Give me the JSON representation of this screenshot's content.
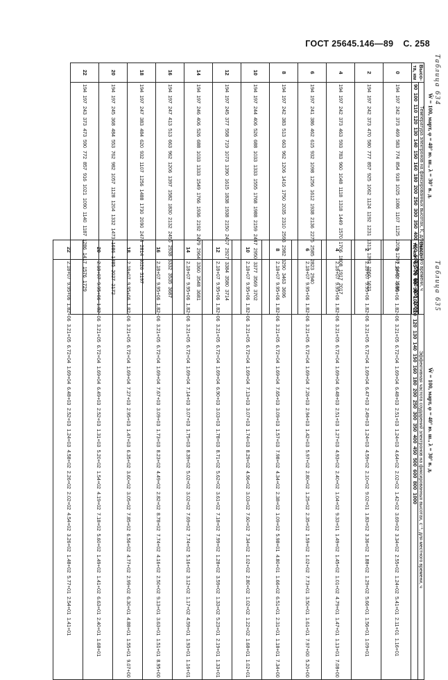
{
  "header": {
    "gost": "ГОСТ 25645.146—89",
    "page": "С. 258"
  },
  "table1": {
    "caption": "Таблица 634",
    "title": "W̄ = 100, март, φ = 40° ю. ш., λ = 30° в. д.",
    "subtitle": "Температура электронов на фиксированных высотах, К, для местного времени, ч",
    "height_label": "Высо-\nта, км",
    "columns": [
      "0",
      "2",
      "4",
      "6",
      "8",
      "10",
      "12",
      "14",
      "16",
      "18",
      "20",
      "22"
    ],
    "heights": [
      "90",
      "100",
      "110",
      "120",
      "130",
      "140",
      "150",
      "160",
      "180",
      "200",
      "250",
      "300",
      "350",
      "400",
      "450",
      "500",
      "550",
      "600",
      "800",
      "1000"
    ],
    "cols": [
      [
        "194",
        "197",
        "242",
        "373",
        "469",
        "583",
        "774",
        "854",
        "918",
        "1025",
        "1086",
        "1107",
        "1125",
        "1205",
        "1297",
        "1440",
        "1580",
        "",
        ""
      ],
      [
        "194",
        "197",
        "242",
        "373",
        "470",
        "580",
        "777",
        "857",
        "925",
        "1062",
        "1124",
        "1192",
        "1231",
        "1313",
        "1392",
        "1560",
        "1621"
      ],
      [
        "194",
        "197",
        "242",
        "373",
        "463",
        "593",
        "783",
        "960",
        "1048",
        "1118",
        "1318",
        "1449",
        "1570",
        "1706",
        "1808",
        "1917",
        "2017"
      ],
      [
        "194",
        "197",
        "241",
        "386",
        "462",
        "615",
        "932",
        "1098",
        "1256",
        "1612",
        "1938",
        "2136",
        "2275",
        "2585",
        "2823",
        "2940"
      ],
      [
        "194",
        "197",
        "242",
        "383",
        "513",
        "663",
        "962",
        "1206",
        "1416",
        "1750",
        "2035",
        "2310",
        "2593",
        "2982",
        "3290",
        "3463",
        "3696"
      ],
      [
        "194",
        "197",
        "244",
        "406",
        "526",
        "688",
        "1033",
        "1333",
        "1555",
        "1768",
        "1988",
        "2159",
        "2447",
        "2950",
        "3377",
        "3569",
        "3702"
      ],
      [
        "194",
        "197",
        "245",
        "377",
        "558",
        "719",
        "1073",
        "1390",
        "1615",
        "1838",
        "1938",
        "2150",
        "2407",
        "2927",
        "3384",
        "3580",
        "3714"
      ],
      [
        "194",
        "197",
        "246",
        "406",
        "526",
        "688",
        "1033",
        "1333",
        "1549",
        "1766",
        "1936",
        "2192",
        "2479",
        "2964",
        "3360",
        "3548",
        "3681"
      ],
      [
        "194",
        "197",
        "247",
        "413",
        "513",
        "663",
        "962",
        "1206",
        "1397",
        "1582",
        "1830",
        "2132",
        "2455",
        "2938",
        "3332",
        "3535",
        "3687"
      ],
      [
        "194",
        "197",
        "247",
        "383",
        "484",
        "620",
        "932",
        "1107",
        "1256",
        "1488",
        "1730",
        "2090",
        "2474",
        "2814",
        "3026",
        "3197"
      ],
      [
        "194",
        "197",
        "245",
        "368",
        "484",
        "553",
        "762",
        "982",
        "1057",
        "1128",
        "1204",
        "1332",
        "1473",
        "1686",
        "1885",
        "2027",
        "2172"
      ],
      [
        "194",
        "197",
        "243",
        "373",
        "473",
        "590",
        "772",
        "857",
        "916",
        "1021",
        "1090",
        "1140",
        "1187",
        "1286",
        "1417",
        "1576",
        "1729"
      ]
    ]
  },
  "table2": {
    "caption": "Таблица 635",
    "title": "W̄ = 100, март, φ = 40° ю. ш., λ = 30° в. д.",
    "subtitle": "Эффективная частота соударений электронов на фиксированных высотах, с⁻¹, для местного времени, ч",
    "height_label": "Высо-\nта, км",
    "columns": [
      "0",
      "2",
      "4",
      "6",
      "8",
      "10",
      "12",
      "14",
      "16",
      "18",
      "20",
      "22"
    ],
    "heights": [
      "65",
      "70",
      "80",
      "90",
      "100",
      "110",
      "120",
      "130",
      "140",
      "150",
      "160",
      "180",
      "200",
      "250",
      "300",
      "350",
      "400",
      "450",
      "500",
      "600",
      "800",
      "1000"
    ],
    "cols": [
      [
        "2.18+07",
        "9.95+06",
        "1.82+06",
        "3.21+05",
        "6.72+04",
        "1.69+04",
        "6.48+03",
        "2.51+03",
        "1.24+03",
        "4.64+02",
        "2.02+02",
        "1.42+02",
        "3.69+02",
        "3.34+02",
        "2.55+02",
        "1.24+02",
        "5.41+01",
        "2.11+01",
        "1.16+01"
      ],
      [
        "2.18+07",
        "9.95+06",
        "1.82+06",
        "3.21+05",
        "6.72+04",
        "1.69+04",
        "6.47+03",
        "2.49+03",
        "1.24+03",
        "4.59+02",
        "2.10+02",
        "9.02+01",
        "1.83+02",
        "3.36+02",
        "1.88+02",
        "1.29+02",
        "5.66+01",
        "1.56+01",
        "1.09+01"
      ],
      [
        "2.18+07",
        "9.95+06",
        "1.82+06",
        "3.21+05",
        "6.72+04",
        "1.69+04",
        "6.48+03",
        "2.51+03",
        "1.27+03",
        "4.93+02",
        "2.40+02",
        "1.04+02",
        "9.33+01",
        "1.49+02",
        "1.45+02",
        "1.01+02",
        "4.79+01",
        "1.47+01",
        "1.13+01",
        "7.08+00"
      ],
      [
        "2.18+07",
        "9.95+06",
        "1.82+06",
        "3.21+05",
        "6.72+04",
        "1.69+04",
        "7.26+03",
        "2.94+03",
        "1.42+03",
        "5.97+02",
        "2.80+02",
        "1.25+02",
        "2.35+02",
        "1.59+02",
        "1.02+02",
        "7.73+01",
        "3.50+01",
        "1.61+01",
        "7.97+00",
        "5.20+00"
      ],
      [
        "2.18+07",
        "9.95+06",
        "1.82+06",
        "3.21+05",
        "6.72+04",
        "1.69+04",
        "7.65+03",
        "3.09+03",
        "1.57+03",
        "7.98+02",
        "4.34+02",
        "2.38+02",
        "1.09+02",
        "5.98+01",
        "4.80+01",
        "1.66+02",
        "6.51+01",
        "2.31+01",
        "1.18+01",
        "7.34+00"
      ],
      [
        "2.18+07",
        "9.95+06",
        "1.82+06",
        "3.21+05",
        "6.72+04",
        "1.69+04",
        "7.13+03",
        "3.07+03",
        "1.74+03",
        "8.29+02",
        "4.96+02",
        "3.03+02",
        "7.60+02",
        "7.34+02",
        "1.02+02",
        "2.80+02",
        "1.02+02",
        "1.22+02",
        "1.68+01",
        "1.02+01"
      ],
      [
        "2.18+07",
        "9.95+06",
        "1.82+06",
        "3.21+05",
        "6.72+04",
        "1.69+04",
        "6.90+03",
        "3.03+03",
        "1.78+03",
        "8.71+02",
        "5.62+02",
        "3.61+02",
        "7.18+02",
        "7.99+02",
        "1.28+02",
        "3.59+02",
        "1.33+02",
        "5.23+01",
        "2.19+01",
        "1.33+01"
      ],
      [
        "2.18+07",
        "9.95+06",
        "1.82+06",
        "3.21+05",
        "6.72+04",
        "1.69+04",
        "7.14+03",
        "3.07+03",
        "1.75+03",
        "8.39+02",
        "5.02+02",
        "3.02+02",
        "7.69+02",
        "7.74+02",
        "5.16+02",
        "3.12+02",
        "1.17+02",
        "4.59+01",
        "1.93+01",
        "1.16+01"
      ],
      [
        "2.18+07",
        "9.95+06",
        "1.82+06",
        "3.21+05",
        "6.72+04",
        "1.69+04",
        "7.67+03",
        "3.09+03",
        "1.73+03",
        "8.23+02",
        "4.49+02",
        "2.82+02",
        "8.78+02",
        "7.74+02",
        "4.16+02",
        "2.50+02",
        "9.13+01",
        "3.63+01",
        "1.51+01",
        "8.95+00"
      ],
      [
        "2.18+07",
        "9.95+06",
        "1.82+06",
        "3.21+05",
        "6.72+04",
        "1.69+04",
        "7.27+03",
        "2.95+03",
        "1.47+03",
        "6.35+02",
        "3.60+02",
        "3.05+02",
        "7.85+02",
        "6.56+02",
        "4.77+02",
        "2.99+02",
        "6.30+01",
        "4.88+01",
        "1.55+01",
        "9.07+00"
      ],
      [
        "2.18+07",
        "9.95+06",
        "1.82+06",
        "3.21+05",
        "6.72+04",
        "1.69+04",
        "6.49+03",
        "2.52+03",
        "1.31+03",
        "5.20+02",
        "1.54+02",
        "4.19+02",
        "7.18+02",
        "5.60+02",
        "1.49+02",
        "1.41+02",
        "6.63+01",
        "2.40+01",
        "1.68+01"
      ],
      [
        "2.18+07",
        "9.95+06",
        "1.82+06",
        "3.21+05",
        "6.72+04",
        "1.69+04",
        "6.48+03",
        "2.52+03",
        "1.24+03",
        "4.58+02",
        "2.26+02",
        "2.02+02",
        "4.54+02",
        "3.26+02",
        "1.48+02",
        "5.77+01",
        "2.54+01",
        "1.41+01"
      ]
    ]
  }
}
